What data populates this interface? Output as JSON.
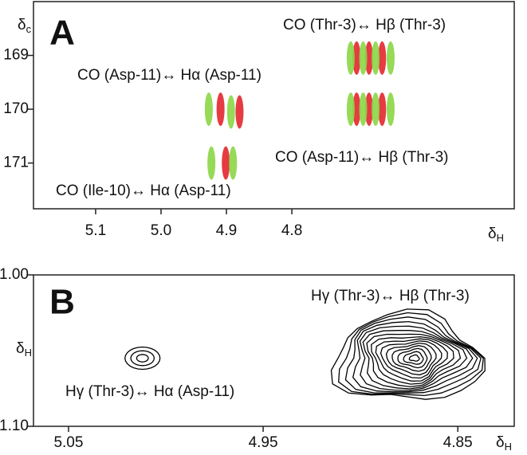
{
  "chart_data": [
    {
      "type": "scatter",
      "panel": "A",
      "xlabel": "δ",
      "xlabel_sub": "H",
      "ylabel": "δ",
      "ylabel_sub": "c",
      "xlim": [
        5.195,
        4.46
      ],
      "ylim": [
        168.0,
        171.85
      ],
      "xticks": [
        5.1,
        {
          "value": 5.0,
          "label": "5.0"
        },
        4.9,
        4.8
      ],
      "yticks": [
        169,
        170,
        171
      ],
      "annotations": [
        "CO (Thr-3)↔ Hβ (Thr-3)",
        "CO (Asp-11)↔ Hα (Asp-11)",
        "CO (Asp-11)↔ Hβ (Thr-3)",
        "CO (Ile-10)↔ Hα (Asp-11)"
      ],
      "series": [
        {
          "color": "#e3262e",
          "x": [
            4.909,
            4.88,
            4.901,
            4.701,
            4.682,
            4.662,
            4.701,
            4.682,
            4.662
          ],
          "values": [
            170.0,
            170.05,
            171.0,
            169.05,
            169.05,
            169.05,
            170.0,
            170.0,
            170.0
          ]
        },
        {
          "color": "#8bd646",
          "x": [
            4.927,
            4.893,
            4.923,
            4.89,
            4.71,
            4.691,
            4.672,
            4.649,
            4.71,
            4.691,
            4.672,
            4.649
          ],
          "values": [
            170.0,
            170.05,
            171.0,
            171.0,
            169.05,
            169.05,
            169.05,
            169.05,
            170.0,
            170.0,
            170.0,
            170.0
          ]
        }
      ]
    },
    {
      "type": "scatter",
      "panel": "B",
      "xlabel": "δ",
      "xlabel_sub": "H",
      "ylabel": "δ",
      "ylabel_sub": "H",
      "xlim": [
        5.068,
        4.821
      ],
      "ylim": [
        1.0,
        1.1
      ],
      "xticks": [
        5.05,
        4.95,
        4.85
      ],
      "yticks": [
        {
          "value": 1.0,
          "label": "1.00"
        },
        {
          "value": 1.1,
          "label": "1.10"
        }
      ],
      "annotations": [
        "Hγ (Thr-3)↔ Hβ (Thr-3)",
        "Hγ (Thr-3)↔ Hα (Asp-11)"
      ],
      "series": [
        {
          "color": "#000000",
          "x": [
            5.012,
            4.872
          ],
          "values": [
            1.055,
            1.055
          ]
        }
      ]
    }
  ]
}
